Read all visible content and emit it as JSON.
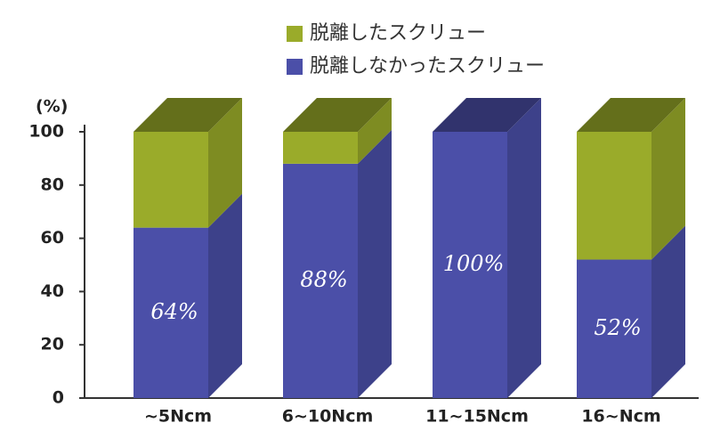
{
  "chart_data": {
    "type": "bar3d_stacked",
    "y_label": "(%)",
    "categories": [
      "~5Ncm",
      "6~10Ncm",
      "11~15Ncm",
      "16~Ncm"
    ],
    "series": [
      {
        "name": "脱離したスクリュー",
        "color": "#9aab2a",
        "values": [
          36,
          12,
          0,
          48
        ]
      },
      {
        "name": "脱離しなかったスクリュー",
        "color": "#4b4fa8",
        "values": [
          64,
          88,
          100,
          52
        ],
        "value_labels": [
          "64%",
          "88%",
          "100%",
          "52%"
        ]
      }
    ],
    "ylim": [
      0,
      100
    ],
    "yticks": [
      0,
      20,
      40,
      60,
      80,
      100
    ]
  }
}
